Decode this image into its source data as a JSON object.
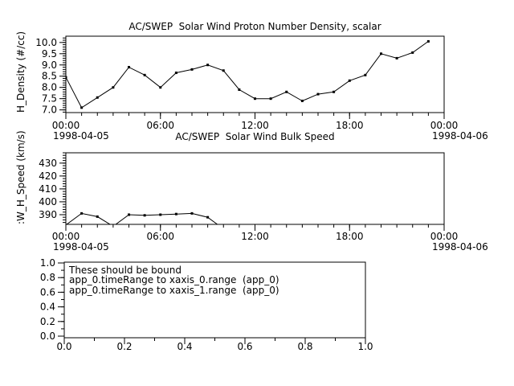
{
  "app": {
    "bg": "#ffffff",
    "fg": "#000000",
    "line_color": "#000000",
    "marker": "filled-square"
  },
  "chart_data": [
    {
      "type": "line",
      "title": "AC/SWEP  Solar Wind Proton Number Density, scalar",
      "ylabel": "H_Density (#/cc)",
      "xlabel": "",
      "x_unit": "hours from 1998-04-05 00:00",
      "x": [
        0,
        1,
        2,
        3,
        4,
        5,
        6,
        7,
        8,
        9,
        10,
        11,
        12,
        13,
        14,
        15,
        16,
        17,
        18,
        19,
        20,
        21,
        22,
        23
      ],
      "values": [
        8.45,
        7.1,
        7.55,
        8.0,
        8.9,
        8.55,
        8.0,
        8.65,
        8.8,
        9.0,
        8.75,
        7.9,
        7.5,
        7.5,
        7.8,
        7.4,
        7.7,
        7.8,
        8.3,
        8.55,
        9.5,
        9.3,
        9.55,
        10.05
      ],
      "xlim": [
        0,
        24
      ],
      "ylim": [
        6.88,
        10.28
      ],
      "yticks": [
        {
          "v": 7.0,
          "label": "7.0"
        },
        {
          "v": 7.5,
          "label": "7.5"
        },
        {
          "v": 8.0,
          "label": "8.0"
        },
        {
          "v": 8.5,
          "label": "8.5"
        },
        {
          "v": 9.0,
          "label": "9.0"
        },
        {
          "v": 9.5,
          "label": "9.5"
        },
        {
          "v": 10.0,
          "label": "10.0"
        }
      ],
      "xticks": [
        {
          "v": 0,
          "label": "00:00"
        },
        {
          "v": 6,
          "label": "06:00"
        },
        {
          "v": 12,
          "label": "12:00"
        },
        {
          "v": 18,
          "label": "18:00"
        },
        {
          "v": 24,
          "label": "00:00"
        }
      ],
      "y_minor_step": 0.1,
      "x_minor_step": 1,
      "date_left": "1998-04-05",
      "date_right": "1998-04-06",
      "grid": false,
      "legend": null
    },
    {
      "type": "line",
      "title": "AC/SWEP  Solar Wind Bulk Speed",
      "ylabel": ":W_H_Speed (km/s)",
      "xlabel": "",
      "x_unit": "hours from 1998-04-05 00:00",
      "x": [
        0,
        1,
        2,
        3,
        4,
        5,
        6,
        7,
        8,
        9,
        10
      ],
      "values": [
        382,
        391,
        388.5,
        381,
        390,
        389.5,
        390,
        390.5,
        391,
        388,
        379
      ],
      "values_note": "points below ylim are clipped at the axis; no data after hour 10",
      "xlim": [
        0,
        24
      ],
      "ylim": [
        382.5,
        438
      ],
      "yticks": [
        {
          "v": 390,
          "label": "390"
        },
        {
          "v": 400,
          "label": "400"
        },
        {
          "v": 410,
          "label": "410"
        },
        {
          "v": 420,
          "label": "420"
        },
        {
          "v": 430,
          "label": "430"
        }
      ],
      "xticks": [
        {
          "v": 0,
          "label": "00:00"
        },
        {
          "v": 6,
          "label": "06:00"
        },
        {
          "v": 12,
          "label": "12:00"
        },
        {
          "v": 18,
          "label": "18:00"
        },
        {
          "v": 24,
          "label": "00:00"
        }
      ],
      "y_minor_step": 2,
      "x_minor_step": 1,
      "date_left": "1998-04-05",
      "date_right": "1998-04-06",
      "grid": false,
      "legend": null
    },
    {
      "type": "line",
      "title": "",
      "ylabel": "",
      "xlabel": "",
      "x": [],
      "values": [],
      "xlim": [
        0,
        1
      ],
      "ylim": [
        -0.022,
        1.011
      ],
      "yticks": [
        {
          "v": 0.0,
          "label": "0.0"
        },
        {
          "v": 0.2,
          "label": "0.2"
        },
        {
          "v": 0.4,
          "label": "0.4"
        },
        {
          "v": 0.6,
          "label": "0.6"
        },
        {
          "v": 0.8,
          "label": "0.8"
        },
        {
          "v": 1.0,
          "label": "1.0"
        }
      ],
      "xticks": [
        {
          "v": 0.0,
          "label": "0.0"
        },
        {
          "v": 0.2,
          "label": "0.2"
        },
        {
          "v": 0.4,
          "label": "0.4"
        },
        {
          "v": 0.6,
          "label": "0.6"
        },
        {
          "v": 0.8,
          "label": "0.8"
        },
        {
          "v": 1.0,
          "label": "1.0"
        }
      ],
      "y_minor_step": 0.1,
      "x_minor_step": 0.1,
      "grid": false,
      "annotation": [
        "These should be bound",
        "app_0.timeRange to xaxis_0.range  (app_0)",
        "app_0.timeRange to xaxis_1.range  (app_0)"
      ]
    }
  ]
}
